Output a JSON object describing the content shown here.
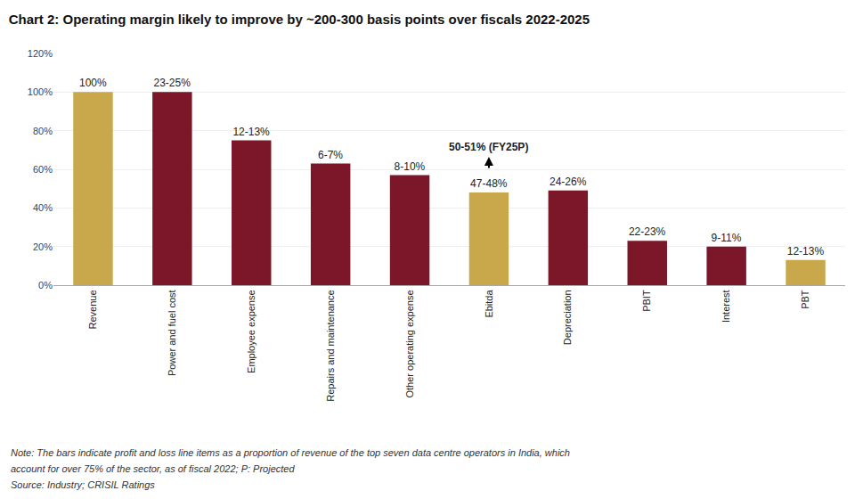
{
  "chart_data": {
    "type": "bar",
    "title": "Chart 2: Operating margin likely to improve by ~200-300 basis points over fiscals 2022-2025",
    "categories": [
      "Revenue",
      "Power and fuel cost",
      "Employee expense",
      "Repairs and maintenance",
      "Other operating expense",
      "Ebitda",
      "Depreciation",
      "PBIT",
      "Interest",
      "PBT"
    ],
    "values": [
      100,
      100,
      75,
      63,
      57,
      48,
      49,
      23,
      20,
      13
    ],
    "value_labels": [
      "100%",
      "23-25%",
      "12-13%",
      "6-7%",
      "8-10%",
      "47-48%",
      "24-26%",
      "22-23%",
      "9-11%",
      "12-13%"
    ],
    "data_labels": true,
    "colors": [
      "#C9A84C",
      "#7B1728",
      "#7B1728",
      "#7B1728",
      "#7B1728",
      "#C9A84C",
      "#7B1728",
      "#7B1728",
      "#7B1728",
      "#C9A84C"
    ],
    "ylim": [
      0,
      120
    ],
    "yticks": [
      {
        "value": 0,
        "label": "0%"
      },
      {
        "value": 20,
        "label": "20%"
      },
      {
        "value": 40,
        "label": "40%"
      },
      {
        "value": 60,
        "label": "60%"
      },
      {
        "value": 80,
        "label": "80%"
      },
      {
        "value": 100,
        "label": "100%"
      },
      {
        "value": 120,
        "label": "120%"
      }
    ],
    "grid": true,
    "annotations": [
      {
        "text": "50-51% (FY25P)",
        "x": "Ebitda",
        "y": 60
      }
    ],
    "notes": [
      "Note: The bars indicate profit and loss line items as a proportion of revenue of the top seven data centre operators in India, which",
      "account for over 75% of the sector, as of fiscal 2022; P: Projected",
      "Source: Industry; CRISIL Ratings"
    ]
  }
}
